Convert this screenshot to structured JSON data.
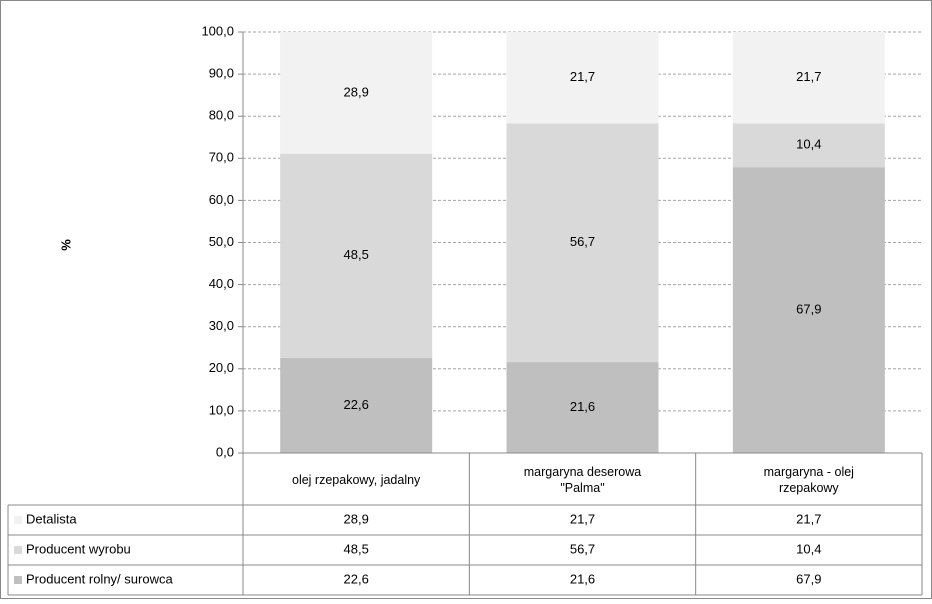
{
  "chart_data": {
    "type": "bar",
    "stacked": true,
    "y_label": "%",
    "categories": [
      "olej rzepakowy, jadalny",
      "margaryna deserowa \"Palma\"",
      "margaryna - olej rzepakowy"
    ],
    "series": [
      {
        "name": "Detalista",
        "color": "#f2f2f2",
        "values": [
          28.9,
          21.7,
          21.7
        ],
        "value_labels": [
          "28,9",
          "21,7",
          "21,7"
        ]
      },
      {
        "name": "Producent wyrobu",
        "color": "#d9d9d9",
        "values": [
          48.5,
          56.7,
          10.4
        ],
        "value_labels": [
          "48,5",
          "56,7",
          "10,4"
        ]
      },
      {
        "name": "Producent rolny/ surowca",
        "color": "#bfbfbf",
        "values": [
          22.6,
          21.6,
          67.9
        ],
        "value_labels": [
          "22,6",
          "21,6",
          "67,9"
        ]
      }
    ],
    "ylim": [
      0,
      100
    ],
    "yticks": [
      {
        "value": 0,
        "label": "0,0"
      },
      {
        "value": 10,
        "label": "10,0"
      },
      {
        "value": 20,
        "label": "20,0"
      },
      {
        "value": 30,
        "label": "30,0"
      },
      {
        "value": 40,
        "label": "40,0"
      },
      {
        "value": 50,
        "label": "50,0"
      },
      {
        "value": 60,
        "label": "60,0"
      },
      {
        "value": 70,
        "label": "70,0"
      },
      {
        "value": 80,
        "label": "80,0"
      },
      {
        "value": 90,
        "label": "90,0"
      },
      {
        "value": 100,
        "label": "100,0"
      }
    ],
    "grid": true,
    "data_table": true
  }
}
